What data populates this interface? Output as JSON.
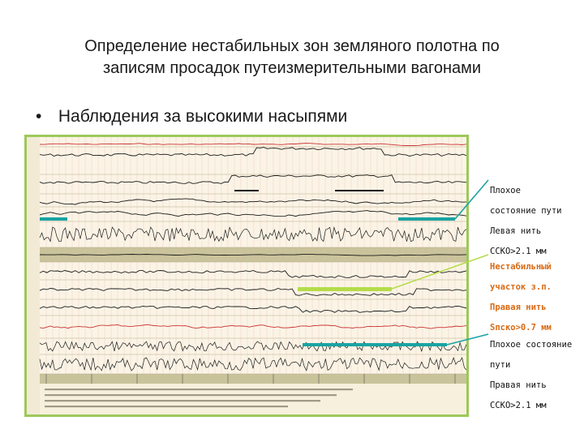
{
  "slide": {
    "title_line1": "Определение нестабильных зон  земляного полотна по",
    "title_line2": "записям просадок путеизмерительными вагонами",
    "bullet_symbol": "•",
    "bullet_text": "Наблюдения за высокими насыпями"
  },
  "annotations": [
    {
      "lines": [
        "Плохое",
        "состояние пути",
        "Левая нить",
        "ССКО>2.1 мм"
      ],
      "color": "#111111",
      "pointer": "#1aa3a3"
    },
    {
      "lines": [
        "Нестабильный",
        "участок з.п.",
        "Правая нить",
        "Sпско>0.7 мм"
      ],
      "color": "#d96a14",
      "pointer": "#b5dc4a"
    },
    {
      "lines": [
        "Плохое состояние",
        "пути",
        "Правая нить",
        "ССКО>2.1 мм"
      ],
      "color": "#111111",
      "pointer": "#1aa3a3"
    }
  ],
  "colors": {
    "frame": "#9dc85a",
    "band": "#c9c39b",
    "teal": "#1aa3a3",
    "green_marker": "#b5dc4a",
    "trace": "#1a1a1a",
    "red_trace": "#cc3333",
    "grid": "#e6b9a8"
  }
}
